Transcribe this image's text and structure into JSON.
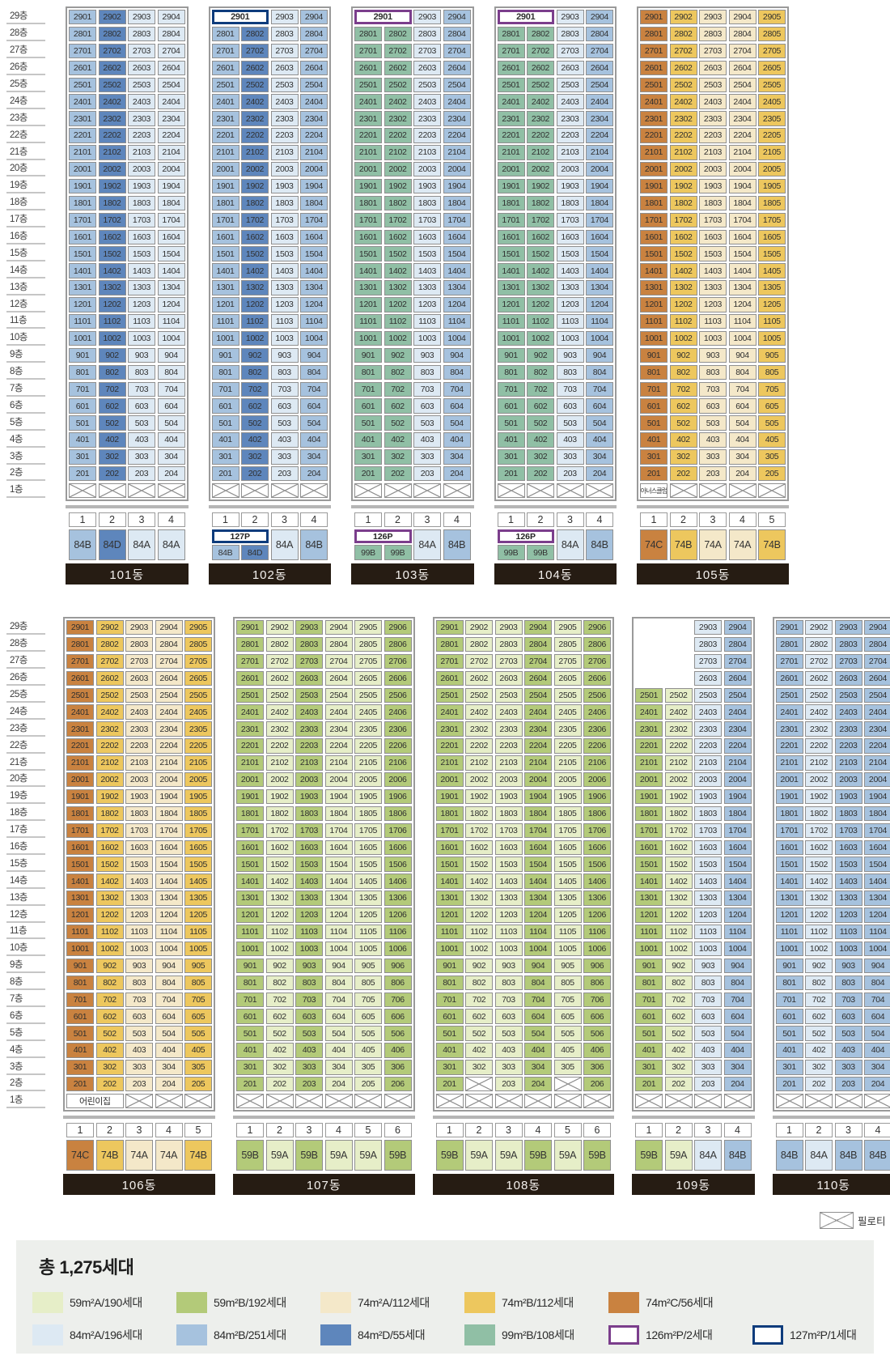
{
  "top_floor": 29,
  "floor_labels": [
    "29층",
    "28층",
    "27층",
    "26층",
    "25층",
    "24층",
    "23층",
    "22층",
    "21층",
    "20층",
    "19층",
    "18층",
    "17층",
    "16층",
    "15층",
    "14층",
    "13층",
    "12층",
    "11층",
    "10층",
    "9층",
    "8층",
    "7층",
    "6층",
    "5층",
    "4층",
    "3층",
    "2층",
    "1층"
  ],
  "palette": {
    "59A": "#e6eec8",
    "59B": "#b3ca79",
    "74A": "#f4e8c9",
    "74B": "#edc75e",
    "74C": "#c98240",
    "84A": "#dde9f3",
    "84B": "#a6c2de",
    "84D": "#5e86bc",
    "99B": "#90bfa5",
    "126P_border": "#7b3e8c",
    "127P_border": "#0e3c7c",
    "name_bar": "#261c13",
    "legend_bg": "#edefec"
  },
  "sections": [
    {
      "id": "top",
      "buildings": [
        {
          "name": "101동",
          "columns": [
            "1",
            "2",
            "3",
            "4"
          ],
          "types": [
            "84B",
            "84D",
            "84A",
            "84A"
          ]
        },
        {
          "name": "102동",
          "columns": [
            "1",
            "2",
            "3",
            "4"
          ],
          "types": [
            "84B",
            "84D",
            "84A",
            "84B"
          ],
          "penthouse": {
            "label": "2901",
            "span": 2,
            "type": "127P"
          },
          "type_badge": {
            "label": "127P",
            "span": 2,
            "type": "127P"
          }
        },
        {
          "name": "103동",
          "columns": [
            "1",
            "2",
            "3",
            "4"
          ],
          "types": [
            "99B",
            "99B",
            "84A",
            "84B"
          ],
          "penthouse": {
            "label": "2901",
            "span": 2,
            "type": "126P"
          },
          "type_badge": {
            "label": "126P",
            "span": 2,
            "type": "126P"
          }
        },
        {
          "name": "104동",
          "columns": [
            "1",
            "2",
            "3",
            "4"
          ],
          "types": [
            "99B",
            "99B",
            "84A",
            "84B"
          ],
          "penthouse": {
            "label": "2901",
            "span": 2,
            "type": "126P"
          },
          "type_badge": {
            "label": "126P",
            "span": 2,
            "type": "126P"
          }
        },
        {
          "name": "105동",
          "columns": [
            "1",
            "2",
            "3",
            "4",
            "5"
          ],
          "types": [
            "74C",
            "74B",
            "74A",
            "74A",
            "74B"
          ],
          "floor1": [
            {
              "label": "아너스클럽",
              "span": 1
            },
            {
              "x": true
            },
            {
              "x": true
            },
            {
              "x": true
            },
            {
              "x": true
            }
          ]
        }
      ]
    },
    {
      "id": "bottom",
      "buildings": [
        {
          "name": "106동",
          "columns": [
            "1",
            "2",
            "3",
            "4",
            "5"
          ],
          "types": [
            "74C",
            "74B",
            "74A",
            "74A",
            "74B"
          ],
          "floor1": [
            {
              "label": "어린이집",
              "span": 2
            },
            {
              "x": true
            },
            {
              "x": true
            },
            {
              "x": true
            }
          ]
        },
        {
          "name": "107동",
          "columns": [
            "1",
            "2",
            "3",
            "4",
            "5",
            "6"
          ],
          "types": [
            "59B",
            "59A",
            "59B",
            "59A",
            "59A",
            "59B"
          ]
        },
        {
          "name": "108동",
          "columns": [
            "1",
            "2",
            "3",
            "4",
            "5",
            "6"
          ],
          "types": [
            "59B",
            "59A",
            "59A",
            "59B",
            "59A",
            "59B"
          ],
          "x_units": [
            [
              2,
              2
            ],
            [
              2,
              5
            ]
          ]
        },
        {
          "name": "109동",
          "columns": [
            "1",
            "2",
            "3",
            "4"
          ],
          "types": [
            "59B",
            "59A",
            "84A",
            "84B"
          ],
          "col_top_floor": [
            25,
            25,
            29,
            29
          ]
        },
        {
          "name": "110동",
          "columns": [
            "1",
            "2",
            "3",
            "4"
          ],
          "types": [
            "84B",
            "84A",
            "84B",
            "84B"
          ]
        }
      ]
    }
  ],
  "pilotis_legend": "필로티",
  "legend": {
    "title": "총 1,275세대",
    "rows": [
      [
        {
          "type": "59A",
          "label": "59m²A/190세대"
        },
        {
          "type": "59B",
          "label": "59m²B/192세대"
        },
        {
          "type": "74A",
          "label": "74m²A/112세대"
        },
        {
          "type": "74B",
          "label": "74m²B/112세대"
        },
        {
          "type": "74C",
          "label": "74m²C/56세대"
        }
      ],
      [
        {
          "type": "84A",
          "label": "84m²A/196세대"
        },
        {
          "type": "84B",
          "label": "84m²B/251세대"
        },
        {
          "type": "84D",
          "label": "84m²D/55세대"
        },
        {
          "type": "99B",
          "label": "99m²B/108세대"
        },
        {
          "type": "126P",
          "label": "126m²P/2세대",
          "outline": true
        },
        {
          "type": "127P",
          "label": "127m²P/1세대",
          "outline": true
        }
      ]
    ]
  }
}
